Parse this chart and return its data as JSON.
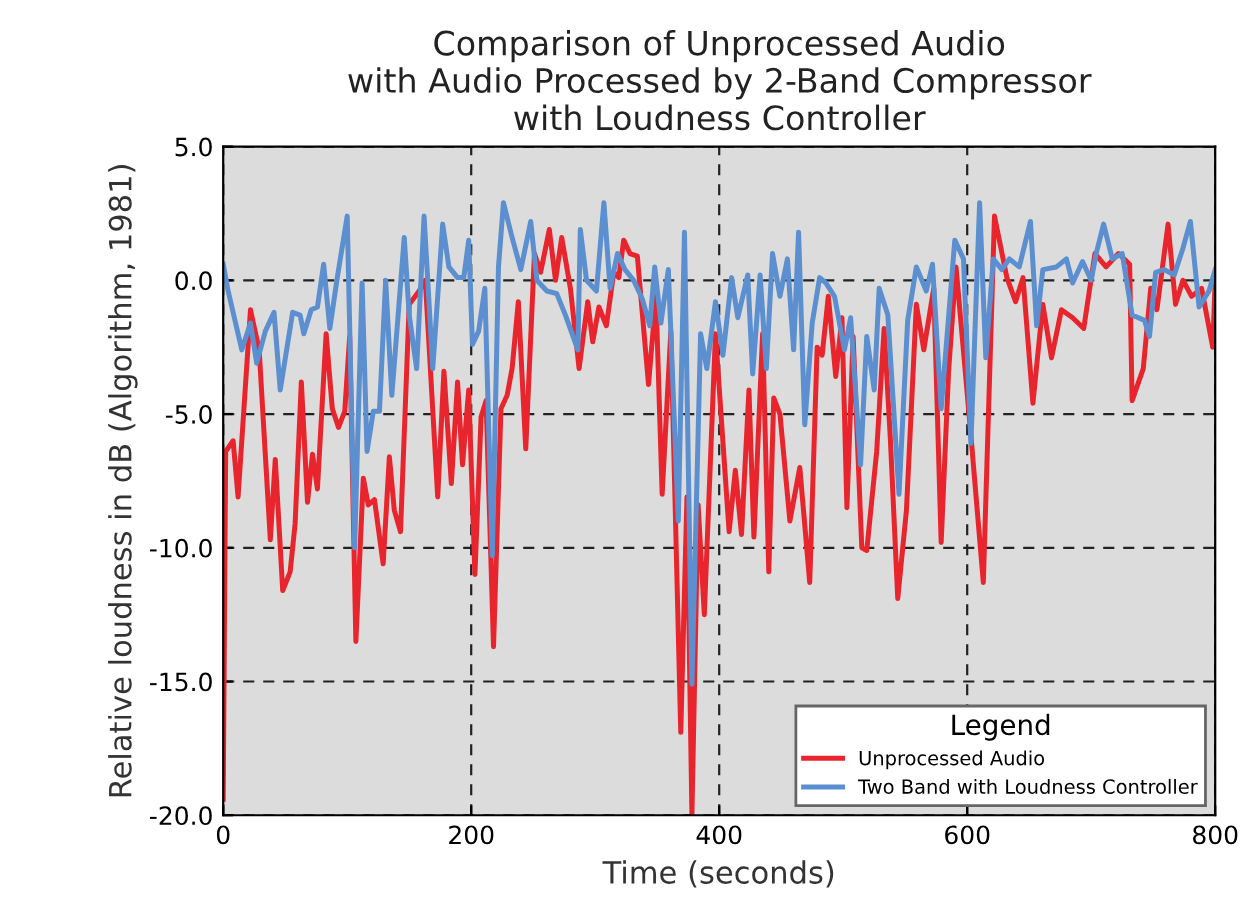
{
  "chart_data": {
    "type": "line",
    "title": "Comparison of Unprocessed Audio\nwith Audio Processed by 2-Band Compressor\nwith Loudness Controller",
    "xlabel": "Time (seconds)",
    "ylabel": "Relative loudness in dB (Algorithm, 1981)",
    "xlim": [
      0,
      800
    ],
    "xticks": [
      0,
      200,
      400,
      600,
      800
    ],
    "ylim": [
      -20,
      5
    ],
    "yticks": [
      {
        "value": -20,
        "label": "-20.0"
      },
      {
        "value": -15,
        "label": "-15.0"
      },
      {
        "value": -10,
        "label": "-10.0"
      },
      {
        "value": -5,
        "label": "-5.0"
      },
      {
        "value": 0,
        "label": "0.0"
      },
      {
        "value": 5,
        "label": "5.0"
      }
    ],
    "grid": true,
    "legend": "bottom right",
    "legend_title": "Legend",
    "marker": "none",
    "line_style": "solid",
    "series": [
      {
        "name": "Unprocessed Audio",
        "color": "#e8252d",
        "x": [
          0,
          2,
          8,
          12,
          22,
          29,
          38,
          42,
          48,
          54,
          58,
          63,
          68,
          72,
          76,
          83,
          88,
          93,
          98,
          102,
          107,
          113,
          117,
          122,
          129,
          134,
          138,
          143,
          150,
          158,
          163,
          173,
          178,
          184,
          189,
          193,
          198,
          203,
          208,
          212,
          218,
          224,
          229,
          233,
          238,
          244,
          251,
          256,
          263,
          268,
          273,
          280,
          287,
          294,
          298,
          303,
          309,
          315,
          319,
          323,
          328,
          334,
          343,
          349,
          354,
          361,
          369,
          374,
          378,
          383,
          388,
          397,
          408,
          413,
          418,
          424,
          428,
          435,
          440,
          444,
          449,
          457,
          465,
          473,
          479,
          483,
          488,
          494,
          499,
          503,
          508,
          515,
          519,
          527,
          533,
          538,
          544,
          551,
          559,
          565,
          573,
          579,
          585,
          591,
          603,
          613,
          622,
          632,
          639,
          645,
          653,
          661,
          668,
          676,
          685,
          694,
          703,
          712,
          722,
          731,
          733,
          742,
          748,
          753,
          762,
          768,
          774,
          781,
          789,
          798,
          800
        ],
        "values": [
          -19.4,
          -6.4,
          -6.0,
          -8.1,
          -1.1,
          -2.6,
          -9.7,
          -6.7,
          -11.6,
          -10.9,
          -9.1,
          -3.8,
          -8.3,
          -6.5,
          -7.8,
          -2.0,
          -4.8,
          -5.5,
          -4.9,
          -2.1,
          -13.5,
          -7.4,
          -8.4,
          -8.2,
          -10.6,
          -6.6,
          -8.6,
          -9.4,
          -0.9,
          -0.4,
          0.0,
          -8.1,
          -3.4,
          -7.6,
          -3.8,
          -6.9,
          -4.1,
          -11.0,
          -5.1,
          -4.5,
          -13.7,
          -4.8,
          -4.3,
          -3.3,
          -0.8,
          -6.3,
          1.0,
          0.3,
          1.9,
          0.0,
          1.6,
          -0.3,
          -3.3,
          -0.8,
          -2.3,
          -1.0,
          -1.7,
          0.3,
          0.1,
          1.5,
          1.0,
          0.9,
          -3.9,
          -0.6,
          -8.0,
          -1.9,
          -16.9,
          -8.1,
          -20.0,
          -8.4,
          -12.5,
          -2.0,
          -9.4,
          -7.1,
          -9.5,
          -4.1,
          -9.6,
          -2.0,
          -10.9,
          -4.4,
          -5.0,
          -9.0,
          -7.0,
          -11.3,
          -2.5,
          -2.8,
          -0.6,
          -3.6,
          -1.4,
          -8.5,
          -2.1,
          -10.0,
          -10.1,
          -6.4,
          -1.8,
          -5.9,
          -11.9,
          -8.6,
          -0.9,
          -2.6,
          -0.3,
          -9.8,
          -3.4,
          0.5,
          -5.8,
          -11.3,
          2.4,
          0.1,
          -0.8,
          0.1,
          -4.6,
          -0.9,
          -2.9,
          -1.1,
          -1.4,
          -1.8,
          1.0,
          0.5,
          1.0,
          0.6,
          -4.5,
          -3.3,
          -0.3,
          -1.1,
          2.1,
          -0.9,
          0.0,
          -0.6,
          -0.3,
          -2.5,
          0.0
        ]
      },
      {
        "name": "Two Band with Loudness Controller",
        "color": "#5b8fd0",
        "x": [
          0,
          4,
          9,
          15,
          22,
          27,
          34,
          41,
          46,
          56,
          62,
          65,
          71,
          76,
          81,
          86,
          92,
          100,
          106,
          112,
          116,
          121,
          126,
          131,
          136,
          146,
          150,
          156,
          162,
          169,
          177,
          182,
          189,
          194,
          198,
          201,
          206,
          211,
          217,
          222,
          226,
          233,
          240,
          248,
          253,
          261,
          269,
          276,
          286,
          288,
          293,
          301,
          307,
          312,
          318,
          324,
          331,
          338,
          344,
          348,
          353,
          359,
          367,
          372,
          378,
          385,
          390,
          397,
          403,
          410,
          415,
          423,
          427,
          433,
          438,
          443,
          449,
          455,
          460,
          464,
          469,
          475,
          481,
          486,
          493,
          501,
          506,
          514,
          519,
          525,
          529,
          536,
          545,
          552,
          559,
          567,
          572,
          579,
          590,
          597,
          603,
          610,
          615,
          621,
          628,
          634,
          642,
          651,
          656,
          661,
          672,
          680,
          685,
          693,
          700,
          704,
          710,
          717,
          725,
          733,
          743,
          747,
          752,
          759,
          767,
          774,
          780,
          787,
          795,
          800
        ],
        "values": [
          0.6,
          -0.4,
          -1.4,
          -2.6,
          -1.6,
          -3.1,
          -1.9,
          -1.2,
          -4.1,
          -1.2,
          -1.3,
          -2.0,
          -1.1,
          -1.0,
          0.6,
          -1.8,
          0.1,
          2.4,
          -10.0,
          -0.1,
          -6.4,
          -4.9,
          -4.9,
          0.0,
          -4.3,
          1.6,
          -1.3,
          -3.3,
          2.4,
          -3.3,
          2.1,
          0.5,
          0.1,
          0.1,
          1.5,
          -2.4,
          -1.9,
          -0.3,
          -10.3,
          0.5,
          2.9,
          1.6,
          0.4,
          2.2,
          0.0,
          -0.4,
          -0.5,
          -1.3,
          -2.6,
          1.9,
          0.0,
          -0.4,
          2.9,
          -0.3,
          1.0,
          0.4,
          0.0,
          -0.7,
          -1.7,
          0.5,
          -1.6,
          0.4,
          -9.0,
          1.8,
          -15.1,
          -2.0,
          -3.3,
          -0.8,
          -2.8,
          0.1,
          -1.4,
          0.2,
          -3.5,
          0.2,
          -3.3,
          1.0,
          -0.6,
          0.8,
          -2.6,
          1.8,
          -5.4,
          -1.6,
          0.1,
          -0.1,
          -0.6,
          -2.6,
          -1.4,
          -6.9,
          -2.1,
          -4.1,
          -0.3,
          -1.3,
          -8.0,
          -1.5,
          0.5,
          -0.4,
          0.6,
          -4.8,
          1.5,
          0.8,
          -6.1,
          2.9,
          -2.9,
          0.8,
          0.4,
          0.8,
          0.5,
          2.2,
          -1.7,
          0.4,
          0.5,
          0.8,
          -0.1,
          0.7,
          0.0,
          1.0,
          2.1,
          0.8,
          1.0,
          -1.3,
          -1.5,
          -2.1,
          0.3,
          0.4,
          0.2,
          1.2,
          2.2,
          -1.0,
          -0.4,
          0.4
        ]
      }
    ]
  }
}
